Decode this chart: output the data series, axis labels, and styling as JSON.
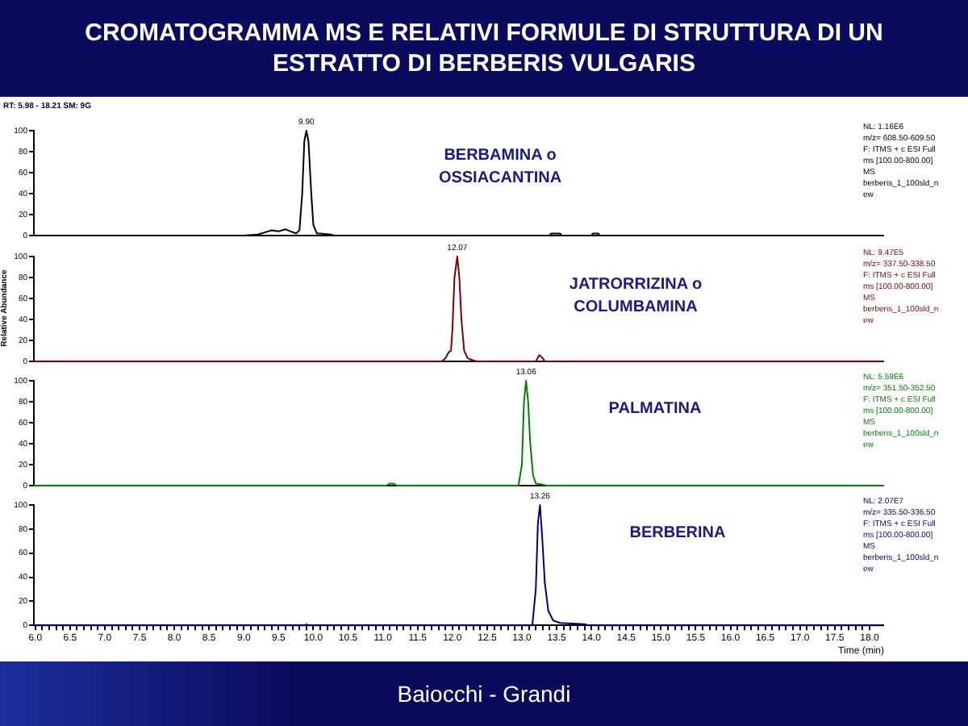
{
  "chart_data": [
    {
      "type": "line",
      "title": "CROMATOGRAMMA MS E RELATIVI FORMULE DI STRUTTURA DI UN ESTRATTO DI BERBERIS VULGARIS",
      "subtitle": "RT: 5.98 - 18.21  SM: 9G",
      "x": [
        5.98,
        9.0,
        9.2,
        9.3,
        9.4,
        9.5,
        9.6,
        9.67,
        9.75,
        9.8,
        9.84,
        9.87,
        9.9,
        9.93,
        9.97,
        10.0,
        10.05,
        10.1,
        10.25,
        10.3,
        13.4,
        13.42,
        13.55,
        13.57,
        14.0,
        14.02,
        14.1,
        14.12,
        18.21
      ],
      "series": [
        {
          "color": "#000000",
          "values": [
            0,
            0,
            1,
            3,
            5,
            4,
            6,
            4,
            2,
            5,
            40,
            90,
            100,
            90,
            40,
            10,
            2,
            2,
            1,
            0,
            0,
            2,
            2,
            0,
            0,
            2,
            2,
            0,
            0
          ]
        }
      ],
      "xlim": [
        5.98,
        18.21
      ],
      "ylim": [
        0,
        100
      ],
      "yticks": [
        0,
        20,
        40,
        60,
        80,
        100
      ],
      "tick_labels": "y",
      "grid": false,
      "legend": false,
      "marker": "none",
      "line_style": "solid",
      "annotations": [
        {
          "text": "9.90",
          "x": 9.9,
          "y": 100
        },
        "BERBAMINA o\nOSSIACANTINA",
        "NL: 1.16E6\nm/z= 608.50-609.50\nF: ITMS + c ESI Full ms [100.00-800.00]\nMS\nberberis_1_100sld_new"
      ]
    },
    {
      "type": "line",
      "ylabel": "Relative Abundance",
      "x": [
        5.98,
        11.85,
        11.9,
        11.95,
        11.98,
        12.0,
        12.03,
        12.07,
        12.1,
        12.13,
        12.17,
        12.22,
        12.3,
        12.35,
        13.2,
        13.25,
        13.3,
        13.33,
        18.21
      ],
      "series": [
        {
          "color": "#800000",
          "values": [
            0,
            0,
            3,
            9,
            10,
            30,
            80,
            100,
            80,
            40,
            10,
            3,
            1,
            0,
            0,
            6,
            3,
            0,
            0
          ]
        }
      ],
      "xlim": [
        5.98,
        18.21
      ],
      "ylim": [
        0,
        100
      ],
      "yticks": [
        0,
        20,
        40,
        60,
        80,
        100
      ],
      "tick_labels": "y",
      "grid": false,
      "legend": false,
      "marker": "none",
      "line_style": "solid",
      "annotations": [
        {
          "text": "12.07",
          "x": 12.07,
          "y": 100
        },
        "JATRORRIZINA o\nCOLUMBAMINA",
        "NL: 9.47E5\nm/z= 337.50-338.50\nF: ITMS + c ESI Full ms [100.00-800.00]\nMS\nberberis_1_100sld_new"
      ]
    },
    {
      "type": "line",
      "x": [
        5.98,
        11.05,
        11.1,
        11.15,
        11.2,
        12.95,
        13.0,
        13.03,
        13.06,
        13.09,
        13.12,
        13.16,
        13.2,
        13.3,
        13.35,
        18.21
      ],
      "series": [
        {
          "color": "#008000",
          "values": [
            0,
            0,
            2,
            2,
            0,
            0,
            20,
            80,
            100,
            80,
            40,
            10,
            2,
            1,
            0,
            0
          ]
        }
      ],
      "xlim": [
        5.98,
        18.21
      ],
      "ylim": [
        0,
        100
      ],
      "yticks": [
        0,
        20,
        40,
        60,
        80,
        100
      ],
      "tick_labels": "y",
      "grid": false,
      "legend": false,
      "marker": "none",
      "line_style": "solid",
      "annotations": [
        {
          "text": "13.06",
          "x": 13.06,
          "y": 100
        },
        "PALMATINA",
        "NL: 5.59E6\nm/z= 351.50-352.50\nF: ITMS + c ESI Full ms [100.00-800.00]\nMS\nberberis_1_100sld_new"
      ]
    },
    {
      "type": "line",
      "xlabel": "Time (min)",
      "x": [
        5.98,
        9.88,
        9.9,
        9.92,
        13.15,
        13.2,
        13.23,
        13.26,
        13.29,
        13.33,
        13.38,
        13.45,
        13.55,
        13.9,
        13.95,
        18.21
      ],
      "series": [
        {
          "color": "#000080",
          "values": [
            0,
            0,
            1,
            0,
            0,
            30,
            85,
            100,
            75,
            35,
            12,
            4,
            2,
            1,
            0,
            0
          ]
        }
      ],
      "xlim": [
        5.98,
        18.21
      ],
      "ylim": [
        0,
        100
      ],
      "yticks": [
        0,
        20,
        40,
        60,
        80,
        100
      ],
      "grid": false,
      "legend": false,
      "marker": "none",
      "line_style": "solid",
      "xticks": [
        {
          "value": 6.0,
          "label": "6.0"
        },
        {
          "value": 6.1,
          "label": null
        },
        {
          "value": 6.2,
          "label": null
        },
        {
          "value": 6.3,
          "label": null
        },
        {
          "value": 6.4,
          "label": null
        },
        {
          "value": 6.5,
          "label": "6.5"
        },
        {
          "value": 6.6,
          "label": null
        },
        {
          "value": 6.7,
          "label": null
        },
        {
          "value": 6.8,
          "label": null
        },
        {
          "value": 6.9,
          "label": null
        },
        {
          "value": 7.0,
          "label": "7.0"
        },
        {
          "value": 7.1,
          "label": null
        },
        {
          "value": 7.2,
          "label": null
        },
        {
          "value": 7.3,
          "label": null
        },
        {
          "value": 7.4,
          "label": null
        },
        {
          "value": 7.5,
          "label": "7.5"
        },
        {
          "value": 7.6,
          "label": null
        },
        {
          "value": 7.7,
          "label": null
        },
        {
          "value": 7.8,
          "label": null
        },
        {
          "value": 7.9,
          "label": null
        },
        {
          "value": 8.0,
          "label": "8.0"
        },
        {
          "value": 8.1,
          "label": null
        },
        {
          "value": 8.2,
          "label": null
        },
        {
          "value": 8.3,
          "label": null
        },
        {
          "value": 8.4,
          "label": null
        },
        {
          "value": 8.5,
          "label": "8.5"
        },
        {
          "value": 8.6,
          "label": null
        },
        {
          "value": 8.7,
          "label": null
        },
        {
          "value": 8.8,
          "label": null
        },
        {
          "value": 8.9,
          "label": null
        },
        {
          "value": 9.0,
          "label": "9.0"
        },
        {
          "value": 9.1,
          "label": null
        },
        {
          "value": 9.2,
          "label": null
        },
        {
          "value": 9.3,
          "label": null
        },
        {
          "value": 9.4,
          "label": null
        },
        {
          "value": 9.5,
          "label": "9.5"
        },
        {
          "value": 9.6,
          "label": null
        },
        {
          "value": 9.7,
          "label": null
        },
        {
          "value": 9.8,
          "label": null
        },
        {
          "value": 9.9,
          "label": null
        },
        {
          "value": 10.0,
          "label": "10.0"
        },
        {
          "value": 10.1,
          "label": null
        },
        {
          "value": 10.2,
          "label": null
        },
        {
          "value": 10.3,
          "label": null
        },
        {
          "value": 10.4,
          "label": null
        },
        {
          "value": 10.5,
          "label": "10.5"
        },
        {
          "value": 10.6,
          "label": null
        },
        {
          "value": 10.7,
          "label": null
        },
        {
          "value": 10.8,
          "label": null
        },
        {
          "value": 10.9,
          "label": null
        },
        {
          "value": 11.0,
          "label": "11.0"
        },
        {
          "value": 11.1,
          "label": null
        },
        {
          "value": 11.2,
          "label": null
        },
        {
          "value": 11.3,
          "label": null
        },
        {
          "value": 11.4,
          "label": null
        },
        {
          "value": 11.5,
          "label": "11.5"
        },
        {
          "value": 11.6,
          "label": null
        },
        {
          "value": 11.7,
          "label": null
        },
        {
          "value": 11.8,
          "label": null
        },
        {
          "value": 11.9,
          "label": null
        },
        {
          "value": 12.0,
          "label": "12.0"
        },
        {
          "value": 12.1,
          "label": null
        },
        {
          "value": 12.2,
          "label": null
        },
        {
          "value": 12.3,
          "label": null
        },
        {
          "value": 12.4,
          "label": null
        },
        {
          "value": 12.5,
          "label": "12.5"
        },
        {
          "value": 12.6,
          "label": null
        },
        {
          "value": 12.7,
          "label": null
        },
        {
          "value": 12.8,
          "label": null
        },
        {
          "value": 12.9,
          "label": null
        },
        {
          "value": 13.0,
          "label": "13.0"
        },
        {
          "value": 13.1,
          "label": null
        },
        {
          "value": 13.2,
          "label": null
        },
        {
          "value": 13.3,
          "label": null
        },
        {
          "value": 13.4,
          "label": null
        },
        {
          "value": 13.5,
          "label": "13.5"
        },
        {
          "value": 13.6,
          "label": null
        },
        {
          "value": 13.7,
          "label": null
        },
        {
          "value": 13.8,
          "label": null
        },
        {
          "value": 13.9,
          "label": null
        },
        {
          "value": 14.0,
          "label": "14.0"
        },
        {
          "value": 14.1,
          "label": null
        },
        {
          "value": 14.2,
          "label": null
        },
        {
          "value": 14.3,
          "label": null
        },
        {
          "value": 14.4,
          "label": null
        },
        {
          "value": 14.5,
          "label": "14.5"
        },
        {
          "value": 14.6,
          "label": null
        },
        {
          "value": 14.7,
          "label": null
        },
        {
          "value": 14.8,
          "label": null
        },
        {
          "value": 14.9,
          "label": null
        },
        {
          "value": 15.0,
          "label": "15.0"
        },
        {
          "value": 15.1,
          "label": null
        },
        {
          "value": 15.2,
          "label": null
        },
        {
          "value": 15.3,
          "label": null
        },
        {
          "value": 15.4,
          "label": null
        },
        {
          "value": 15.5,
          "label": "15.5"
        },
        {
          "value": 15.6,
          "label": null
        },
        {
          "value": 15.7,
          "label": null
        },
        {
          "value": 15.8,
          "label": null
        },
        {
          "value": 15.9,
          "label": null
        },
        {
          "value": 16.0,
          "label": "16.0"
        },
        {
          "value": 16.1,
          "label": null
        },
        {
          "value": 16.2,
          "label": null
        },
        {
          "value": 16.3,
          "label": null
        },
        {
          "value": 16.4,
          "label": null
        },
        {
          "value": 16.5,
          "label": "16.5"
        },
        {
          "value": 16.6,
          "label": null
        },
        {
          "value": 16.7,
          "label": null
        },
        {
          "value": 16.8,
          "label": null
        },
        {
          "value": 16.9,
          "label": null
        },
        {
          "value": 17.0,
          "label": "17.0"
        },
        {
          "value": 17.1,
          "label": null
        },
        {
          "value": 17.2,
          "label": null
        },
        {
          "value": 17.3,
          "label": null
        },
        {
          "value": 17.4,
          "label": null
        },
        {
          "value": 17.5,
          "label": "17.5"
        },
        {
          "value": 17.6,
          "label": null
        },
        {
          "value": 17.7,
          "label": null
        },
        {
          "value": 17.8,
          "label": null
        },
        {
          "value": 17.9,
          "label": null
        },
        {
          "value": 18.0,
          "label": "18.0"
        }
      ],
      "annotations": [
        {
          "text": "13.26",
          "x": 13.26,
          "y": 100
        },
        "BERBERINA",
        "NL: 2.07E7\nm/z= 335.50-336.50\nF: ITMS + c ESI Full ms [100.00-800.00]\nMS\nberberis_1_100sld_new",
        "Baiocchi - Grandi"
      ]
    }
  ]
}
